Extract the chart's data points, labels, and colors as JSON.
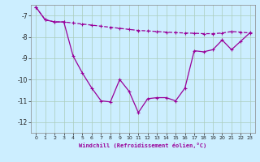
{
  "xlabel": "Windchill (Refroidissement éolien,°C)",
  "background_color": "#cceeff",
  "grid_color": "#aaccbb",
  "line_color": "#990099",
  "x_values": [
    0,
    1,
    2,
    3,
    4,
    5,
    6,
    7,
    8,
    9,
    10,
    11,
    12,
    13,
    14,
    15,
    16,
    17,
    18,
    19,
    20,
    21,
    22,
    23
  ],
  "series1": [
    -6.6,
    -7.2,
    -7.3,
    -7.3,
    -7.35,
    -7.4,
    -7.45,
    -7.5,
    -7.55,
    -7.6,
    -7.65,
    -7.7,
    -7.72,
    -7.75,
    -7.78,
    -7.8,
    -7.82,
    -7.83,
    -7.85,
    -7.85,
    -7.82,
    -7.75,
    -7.78,
    -7.82
  ],
  "series2": [
    -6.6,
    -7.2,
    -7.3,
    -7.3,
    -8.9,
    -9.7,
    -10.4,
    -11.0,
    -11.05,
    -10.0,
    -10.55,
    -11.55,
    -10.9,
    -10.85,
    -10.85,
    -11.0,
    -10.4,
    -8.65,
    -8.7,
    -8.6,
    -8.15,
    -8.6,
    -8.2,
    -7.8
  ],
  "ylim": [
    -12.5,
    -6.5
  ],
  "xlim": [
    -0.5,
    23.5
  ],
  "yticks": [
    -12,
    -11,
    -10,
    -9,
    -8,
    -7
  ],
  "xticks": [
    0,
    1,
    2,
    3,
    4,
    5,
    6,
    7,
    8,
    9,
    10,
    11,
    12,
    13,
    14,
    15,
    16,
    17,
    18,
    19,
    20,
    21,
    22,
    23
  ]
}
